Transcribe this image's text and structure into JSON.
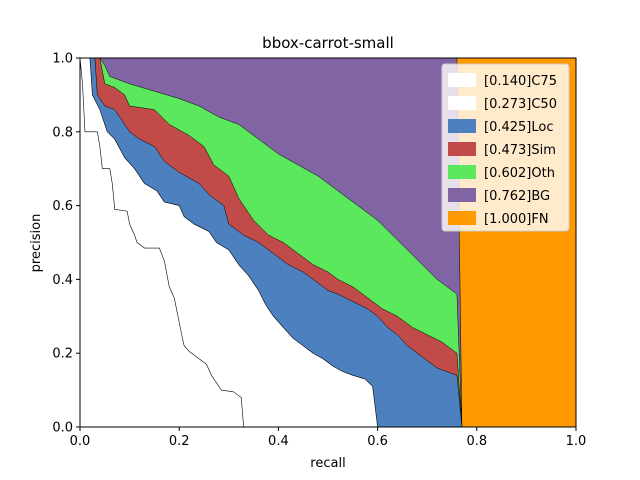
{
  "chart_data": {
    "type": "area",
    "title": "bbox-carrot-small",
    "xlabel": "recall",
    "ylabel": "precision",
    "xlim": [
      0,
      1
    ],
    "ylim": [
      0,
      1
    ],
    "xticks": [
      "0.0",
      "0.2",
      "0.4",
      "0.6",
      "0.8",
      "1.0"
    ],
    "yticks": [
      "0.0",
      "0.2",
      "0.4",
      "0.6",
      "0.8",
      "1.0"
    ],
    "grid": false,
    "legend_position": "top-right",
    "series": [
      {
        "name": "[0.140]C75",
        "color": "#ffffff",
        "points": [
          [
            0,
            1.0
          ],
          [
            0.005,
            0.93
          ],
          [
            0.01,
            0.8
          ],
          [
            0.035,
            0.8
          ],
          [
            0.04,
            0.76
          ],
          [
            0.045,
            0.7
          ],
          [
            0.06,
            0.7
          ],
          [
            0.065,
            0.66
          ],
          [
            0.07,
            0.59
          ],
          [
            0.095,
            0.585
          ],
          [
            0.1,
            0.55
          ],
          [
            0.11,
            0.52
          ],
          [
            0.115,
            0.5
          ],
          [
            0.13,
            0.485
          ],
          [
            0.16,
            0.485
          ],
          [
            0.17,
            0.45
          ],
          [
            0.18,
            0.38
          ],
          [
            0.19,
            0.35
          ],
          [
            0.205,
            0.25
          ],
          [
            0.21,
            0.22
          ],
          [
            0.22,
            0.205
          ],
          [
            0.235,
            0.19
          ],
          [
            0.255,
            0.17
          ],
          [
            0.265,
            0.14
          ],
          [
            0.275,
            0.12
          ],
          [
            0.285,
            0.1
          ],
          [
            0.31,
            0.095
          ],
          [
            0.325,
            0.08
          ],
          [
            0.33,
            0.0
          ]
        ]
      },
      {
        "name": "[0.273]C50",
        "color": "#ffffff",
        "points": [
          [
            0,
            1.0
          ],
          [
            0.02,
            1.0
          ],
          [
            0.025,
            0.9
          ],
          [
            0.04,
            0.86
          ],
          [
            0.055,
            0.8
          ],
          [
            0.07,
            0.78
          ],
          [
            0.09,
            0.73
          ],
          [
            0.11,
            0.7
          ],
          [
            0.13,
            0.66
          ],
          [
            0.155,
            0.64
          ],
          [
            0.17,
            0.61
          ],
          [
            0.2,
            0.6
          ],
          [
            0.21,
            0.57
          ],
          [
            0.23,
            0.55
          ],
          [
            0.26,
            0.53
          ],
          [
            0.275,
            0.5
          ],
          [
            0.3,
            0.48
          ],
          [
            0.32,
            0.44
          ],
          [
            0.34,
            0.41
          ],
          [
            0.36,
            0.37
          ],
          [
            0.375,
            0.33
          ],
          [
            0.39,
            0.3
          ],
          [
            0.41,
            0.27
          ],
          [
            0.43,
            0.24
          ],
          [
            0.45,
            0.22
          ],
          [
            0.47,
            0.2
          ],
          [
            0.49,
            0.185
          ],
          [
            0.51,
            0.165
          ],
          [
            0.53,
            0.15
          ],
          [
            0.55,
            0.14
          ],
          [
            0.575,
            0.13
          ],
          [
            0.59,
            0.11
          ],
          [
            0.6,
            0.0
          ]
        ]
      },
      {
        "name": "[0.425]Loc",
        "color": "#4c80bf",
        "points": [
          [
            0,
            1.0
          ],
          [
            0.03,
            1.0
          ],
          [
            0.035,
            0.9
          ],
          [
            0.05,
            0.87
          ],
          [
            0.07,
            0.86
          ],
          [
            0.085,
            0.83
          ],
          [
            0.1,
            0.8
          ],
          [
            0.12,
            0.78
          ],
          [
            0.15,
            0.76
          ],
          [
            0.17,
            0.72
          ],
          [
            0.2,
            0.69
          ],
          [
            0.24,
            0.66
          ],
          [
            0.26,
            0.63
          ],
          [
            0.29,
            0.6
          ],
          [
            0.3,
            0.55
          ],
          [
            0.33,
            0.52
          ],
          [
            0.36,
            0.5
          ],
          [
            0.39,
            0.47
          ],
          [
            0.42,
            0.44
          ],
          [
            0.45,
            0.42
          ],
          [
            0.48,
            0.39
          ],
          [
            0.5,
            0.37
          ],
          [
            0.52,
            0.36
          ],
          [
            0.55,
            0.34
          ],
          [
            0.58,
            0.32
          ],
          [
            0.6,
            0.3
          ],
          [
            0.62,
            0.27
          ],
          [
            0.64,
            0.25
          ],
          [
            0.66,
            0.22
          ],
          [
            0.68,
            0.2
          ],
          [
            0.7,
            0.18
          ],
          [
            0.72,
            0.16
          ],
          [
            0.74,
            0.15
          ],
          [
            0.76,
            0.14
          ],
          [
            0.77,
            0.0
          ]
        ]
      },
      {
        "name": "[0.473]Sim",
        "color": "#c04b48",
        "points": [
          [
            0,
            1.0
          ],
          [
            0.04,
            1.0
          ],
          [
            0.05,
            0.93
          ],
          [
            0.07,
            0.92
          ],
          [
            0.09,
            0.9
          ],
          [
            0.1,
            0.87
          ],
          [
            0.15,
            0.86
          ],
          [
            0.18,
            0.82
          ],
          [
            0.22,
            0.79
          ],
          [
            0.25,
            0.76
          ],
          [
            0.27,
            0.71
          ],
          [
            0.3,
            0.68
          ],
          [
            0.32,
            0.62
          ],
          [
            0.35,
            0.56
          ],
          [
            0.38,
            0.52
          ],
          [
            0.41,
            0.5
          ],
          [
            0.44,
            0.47
          ],
          [
            0.47,
            0.44
          ],
          [
            0.5,
            0.42
          ],
          [
            0.52,
            0.4
          ],
          [
            0.55,
            0.38
          ],
          [
            0.58,
            0.35
          ],
          [
            0.61,
            0.32
          ],
          [
            0.64,
            0.3
          ],
          [
            0.67,
            0.27
          ],
          [
            0.7,
            0.25
          ],
          [
            0.73,
            0.23
          ],
          [
            0.76,
            0.2
          ],
          [
            0.77,
            0.0
          ]
        ]
      },
      {
        "name": "[0.602]Oth",
        "color": "#5ce85c",
        "points": [
          [
            0,
            1.0
          ],
          [
            0.04,
            1.0
          ],
          [
            0.05,
            0.98
          ],
          [
            0.06,
            0.95
          ],
          [
            0.08,
            0.94
          ],
          [
            0.1,
            0.93
          ],
          [
            0.15,
            0.91
          ],
          [
            0.2,
            0.89
          ],
          [
            0.24,
            0.87
          ],
          [
            0.28,
            0.84
          ],
          [
            0.32,
            0.82
          ],
          [
            0.36,
            0.78
          ],
          [
            0.4,
            0.74
          ],
          [
            0.44,
            0.71
          ],
          [
            0.48,
            0.68
          ],
          [
            0.52,
            0.64
          ],
          [
            0.56,
            0.6
          ],
          [
            0.6,
            0.56
          ],
          [
            0.63,
            0.52
          ],
          [
            0.66,
            0.48
          ],
          [
            0.69,
            0.44
          ],
          [
            0.72,
            0.4
          ],
          [
            0.74,
            0.38
          ],
          [
            0.76,
            0.36
          ],
          [
            0.77,
            0.0
          ]
        ]
      },
      {
        "name": "[0.762]BG",
        "color": "#8064a4",
        "points": [
          [
            0,
            1.0
          ],
          [
            0.76,
            1.0
          ],
          [
            0.765,
            0.5
          ],
          [
            0.77,
            0.0
          ]
        ]
      },
      {
        "name": "[1.000]FN",
        "color": "#ff9900",
        "points": [
          [
            0,
            1.0
          ],
          [
            1.0,
            1.0
          ],
          [
            1.0,
            0.0
          ]
        ]
      }
    ]
  }
}
